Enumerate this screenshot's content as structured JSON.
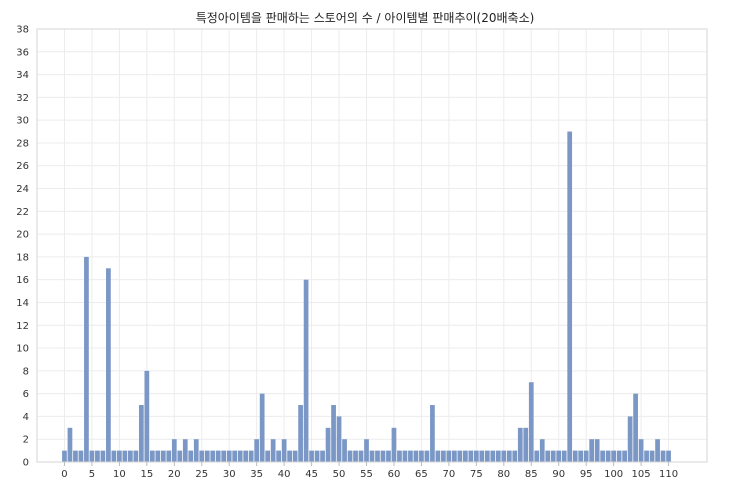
{
  "chart_data": {
    "type": "bar",
    "title": "특정아이템을 판매하는 스토어의 수 / 아이템별 판매추이(20배축소)",
    "xlabel": "",
    "ylabel": "",
    "x_start": 0,
    "x_ticks": [
      0,
      5,
      10,
      15,
      20,
      25,
      30,
      35,
      40,
      45,
      50,
      55,
      60,
      65,
      70,
      75,
      80,
      85,
      90,
      95,
      100,
      105,
      110
    ],
    "y_ticks": [
      0,
      2,
      4,
      6,
      8,
      10,
      12,
      14,
      16,
      18,
      20,
      22,
      24,
      26,
      28,
      30,
      32,
      34,
      36,
      38
    ],
    "xlim": [
      -5,
      117
    ],
    "ylim": [
      0,
      38
    ],
    "grid": true,
    "legend": "none",
    "bar_color": "#7a97c5",
    "values": [
      1,
      3,
      1,
      1,
      18,
      1,
      1,
      1,
      17,
      1,
      1,
      1,
      1,
      1,
      5,
      8,
      1,
      1,
      1,
      1,
      2,
      1,
      2,
      1,
      2,
      1,
      1,
      1,
      1,
      1,
      1,
      1,
      1,
      1,
      1,
      2,
      6,
      1,
      2,
      1,
      2,
      1,
      1,
      5,
      16,
      1,
      1,
      1,
      3,
      5,
      4,
      2,
      1,
      1,
      1,
      2,
      1,
      1,
      1,
      1,
      3,
      1,
      1,
      1,
      1,
      1,
      1,
      5,
      1,
      1,
      1,
      1,
      1,
      1,
      1,
      1,
      1,
      1,
      1,
      1,
      1,
      1,
      1,
      3,
      3,
      7,
      1,
      2,
      1,
      1,
      1,
      1,
      29,
      1,
      1,
      1,
      2,
      2,
      1,
      1,
      1,
      1,
      1,
      4,
      6,
      2,
      1,
      1,
      2,
      1,
      1
    ]
  }
}
